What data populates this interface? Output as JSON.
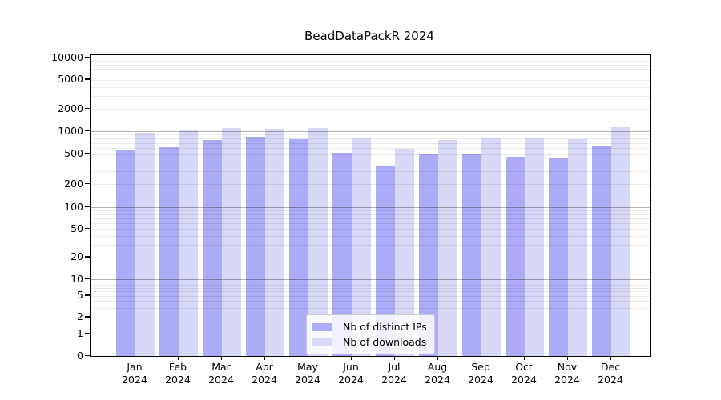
{
  "title": "BeadDataPackR 2024",
  "colors": {
    "ips_bar": "#ababf8",
    "downloads_bar": "#d8d8f7",
    "axis": "#000000",
    "major_grid": "#c6c6c6",
    "minor_grid": "#ececec"
  },
  "legend": {
    "entries": [
      {
        "label": "Nb of distinct IPs",
        "color_key": "ips_bar"
      },
      {
        "label": "Nb of downloads",
        "color_key": "downloads_bar"
      }
    ]
  },
  "y_axis": {
    "tick_labels": [
      "0",
      "1",
      "2",
      "5",
      "10",
      "20",
      "50",
      "100",
      "200",
      "500",
      "1000",
      "2000",
      "5000",
      "10000"
    ]
  },
  "x_axis": {
    "year": "2024",
    "months": [
      "Jan",
      "Feb",
      "Mar",
      "Apr",
      "May",
      "Jun",
      "Jul",
      "Aug",
      "Sep",
      "Oct",
      "Nov",
      "Dec"
    ]
  },
  "chart_data": {
    "type": "bar",
    "title": "BeadDataPackR 2024",
    "categories": [
      "Jan 2024",
      "Feb 2024",
      "Mar 2024",
      "Apr 2024",
      "May 2024",
      "Jun 2024",
      "Jul 2024",
      "Aug 2024",
      "Sep 2024",
      "Oct 2024",
      "Nov 2024",
      "Dec 2024"
    ],
    "series": [
      {
        "name": "Nb of distinct IPs",
        "values": [
          560,
          620,
          770,
          845,
          790,
          520,
          355,
          500,
          490,
          460,
          440,
          630
        ]
      },
      {
        "name": "Nb of downloads",
        "values": [
          950,
          1030,
          1100,
          1080,
          1120,
          805,
          590,
          770,
          825,
          825,
          795,
          1130
        ]
      }
    ],
    "xlabel": "",
    "ylabel": "",
    "yscale": "symlog",
    "yticks": [
      0,
      1,
      2,
      5,
      10,
      20,
      50,
      100,
      200,
      500,
      1000,
      2000,
      5000,
      10000
    ],
    "ylim": [
      0,
      11000
    ],
    "grid": true,
    "legend_position": "lower center"
  }
}
